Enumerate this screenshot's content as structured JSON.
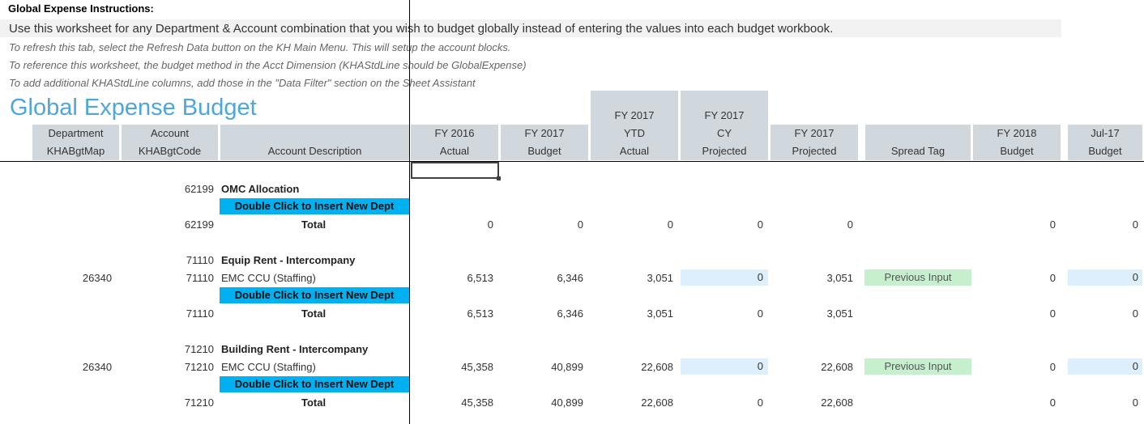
{
  "instructions": {
    "title": "Global Expense Instructions:",
    "main": "Use this worksheet for any Department & Account combination that you wish to budget globally instead of entering the values into each budget workbook.",
    "lines": [
      "To refresh this tab, select the Refresh Data button on the KH Main Menu.  This will setup the account blocks.",
      "To reference this worksheet, the budget method in the Acct Dimension (KHAStdLine should be GlobalExpense)",
      "To add additional KHAStdLine columns, add those in the \"Data Filter\" section on the Sheet Assistant"
    ]
  },
  "sheet_title": "Global Expense Budget",
  "headers": {
    "dept": [
      "Department",
      "KHABgtMap"
    ],
    "account": [
      "Account",
      "KHABgtCode"
    ],
    "desc": [
      "",
      "Account Description"
    ],
    "fy16": [
      "FY 2016",
      "Actual"
    ],
    "fy17b": [
      "FY 2017",
      "Budget"
    ],
    "fy17ytd": [
      "FY 2017",
      "YTD",
      "Actual"
    ],
    "fy17cy": [
      "FY 2017",
      "CY",
      "Projected"
    ],
    "fy17p": [
      "FY 2017",
      "Projected"
    ],
    "spread": [
      "",
      "Spread Tag"
    ],
    "fy18": [
      "FY 2018",
      "Budget"
    ],
    "jul17": [
      "Jul-17",
      "Budget"
    ]
  },
  "insert_label": "Double Click to Insert New Dept",
  "total_label": "Total",
  "blocks": [
    {
      "account": "62199",
      "name": "OMC Allocation",
      "details": [],
      "total": {
        "account": "62199",
        "fy16": "0",
        "fy17b": "0",
        "ytd": "0",
        "cy": "0",
        "proj": "0",
        "fy18": "0",
        "jul": "0"
      }
    },
    {
      "account": "71110",
      "name": "Equip Rent - Intercompany",
      "details": [
        {
          "dept": "26340",
          "account": "71110",
          "desc": "EMC CCU (Staffing)",
          "fy16": "6,513",
          "fy17b": "6,346",
          "ytd": "3,051",
          "cy": "0",
          "proj": "3,051",
          "spread": "Previous Input",
          "fy18": "0",
          "jul": "0"
        }
      ],
      "total": {
        "account": "71110",
        "fy16": "6,513",
        "fy17b": "6,346",
        "ytd": "3,051",
        "cy": "0",
        "proj": "3,051",
        "fy18": "0",
        "jul": "0"
      }
    },
    {
      "account": "71210",
      "name": "Building Rent - Intercompany",
      "details": [
        {
          "dept": "26340",
          "account": "71210",
          "desc": "EMC CCU (Staffing)",
          "fy16": "45,358",
          "fy17b": "40,899",
          "ytd": "22,608",
          "cy": "0",
          "proj": "22,608",
          "spread": "Previous Input",
          "fy18": "0",
          "jul": "0"
        }
      ],
      "total": {
        "account": "71210",
        "fy16": "45,358",
        "fy17b": "40,899",
        "ytd": "22,608",
        "cy": "0",
        "proj": "22,608",
        "fy18": "0",
        "jul": "0"
      }
    }
  ],
  "colors": {
    "title_blue": "#4ea6dc",
    "insert_blue": "#00b0f0",
    "input_blue": "#ddeefc",
    "tag_green": "#c6efce",
    "header_gray": "#d1d8dd"
  }
}
